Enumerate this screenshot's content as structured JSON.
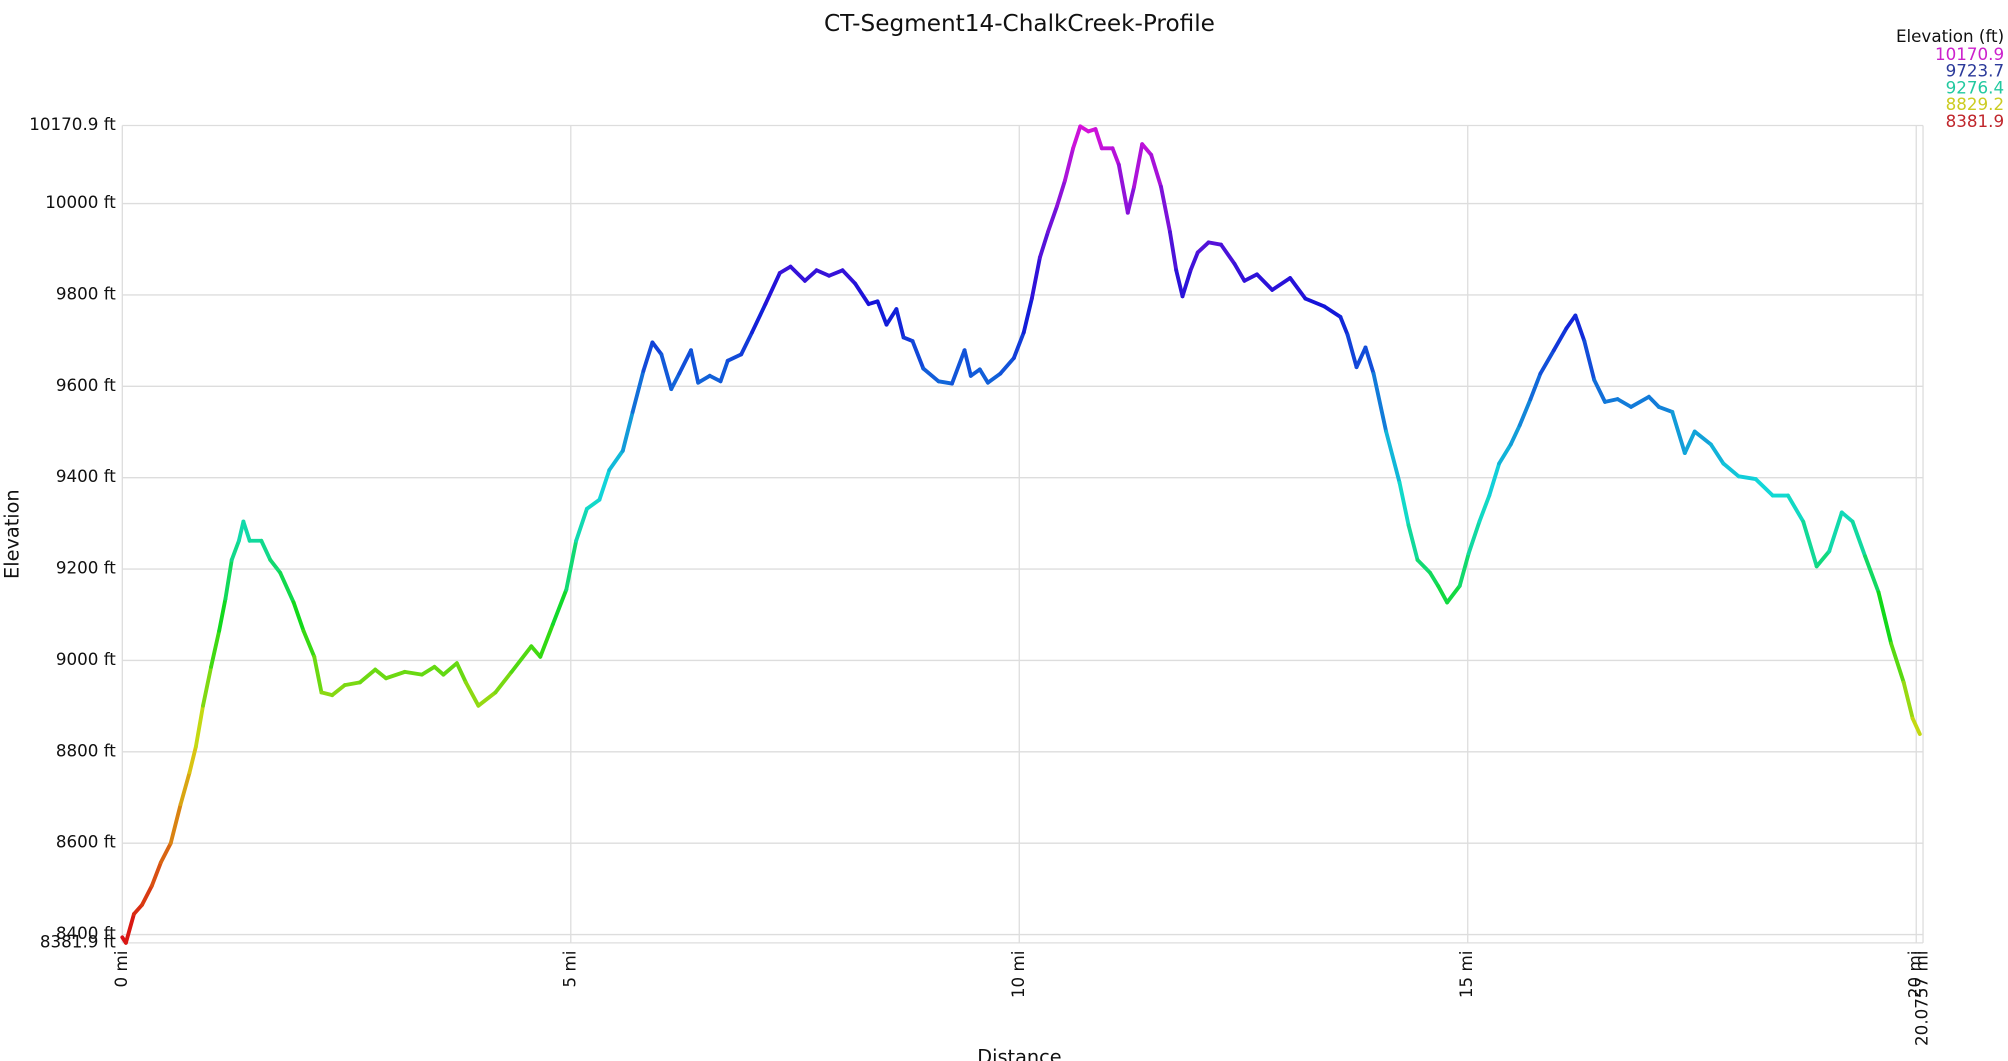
{
  "chart_data": {
    "type": "line",
    "title": "CT-Segment14-ChalkCreek-Profile",
    "x_label": "Distance",
    "y_label": "Elevation",
    "xlim": [
      0,
      20.0757
    ],
    "ylim": [
      8381.9,
      10170.9
    ],
    "xticks": [
      {
        "value": 0,
        "label": "0 mi"
      },
      {
        "value": 5,
        "label": "5 mi"
      },
      {
        "value": 10,
        "label": "10 mi"
      },
      {
        "value": 15,
        "label": "15 mi"
      },
      {
        "value": 20,
        "label": "20 mi"
      },
      {
        "value": 20.0757,
        "label": "20.0757 mi"
      }
    ],
    "yticks": [
      {
        "value": 8381.9,
        "label": "8381.9 ft"
      },
      {
        "value": 8400,
        "label": "8400 ft"
      },
      {
        "value": 8600,
        "label": "8600 ft"
      },
      {
        "value": 8800,
        "label": "8800 ft"
      },
      {
        "value": 9000,
        "label": "9000 ft"
      },
      {
        "value": 9200,
        "label": "9200 ft"
      },
      {
        "value": 9400,
        "label": "9400 ft"
      },
      {
        "value": 9600,
        "label": "9600 ft"
      },
      {
        "value": 9800,
        "label": "9800 ft"
      },
      {
        "value": 10000,
        "label": "10000 ft"
      },
      {
        "value": 10170.9,
        "label": "10170.9 ft"
      }
    ],
    "grid": true,
    "color_scale": {
      "title": "Elevation (ft)",
      "stops": [
        {
          "value": 10170.9,
          "color": "#cc22cc"
        },
        {
          "value": 9723.7,
          "color": "#2b3a9a"
        },
        {
          "value": 9276.4,
          "color": "#22c9a0"
        },
        {
          "value": 8829.2,
          "color": "#cccc22"
        },
        {
          "value": 8381.9,
          "color": "#c0262c"
        }
      ]
    },
    "x": [
      0,
      0.04,
      0.13,
      0.22,
      0.33,
      0.43,
      0.54,
      0.65,
      0.75,
      0.82,
      0.9,
      0.99,
      1.08,
      1.15,
      1.22,
      1.3,
      1.35,
      1.42,
      1.55,
      1.65,
      1.76,
      1.91,
      2.02,
      2.14,
      2.22,
      2.34,
      2.48,
      2.65,
      2.82,
      2.94,
      3.15,
      3.34,
      3.48,
      3.58,
      3.73,
      3.83,
      3.97,
      4.16,
      4.34,
      4.56,
      4.66,
      4.8,
      4.95,
      5.06,
      5.18,
      5.32,
      5.43,
      5.58,
      5.69,
      5.81,
      5.91,
      6.01,
      6.12,
      6.21,
      6.34,
      6.42,
      6.55,
      6.67,
      6.75,
      6.9,
      7.02,
      7.17,
      7.33,
      7.45,
      7.61,
      7.74,
      7.88,
      8.03,
      8.17,
      8.32,
      8.42,
      8.52,
      8.63,
      8.71,
      8.81,
      8.93,
      9.1,
      9.25,
      9.39,
      9.46,
      9.56,
      9.65,
      9.79,
      9.94,
      10.05,
      10.14,
      10.23,
      10.32,
      10.42,
      10.51,
      10.6,
      10.68,
      10.77,
      10.85,
      10.92,
      11.04,
      11.11,
      11.21,
      11.28,
      11.37,
      11.47,
      11.58,
      11.68,
      11.75,
      11.82,
      11.91,
      11.99,
      12.11,
      12.25,
      12.4,
      12.51,
      12.65,
      12.82,
      13.02,
      13.19,
      13.4,
      13.58,
      13.66,
      13.76,
      13.86,
      13.95,
      14.09,
      14.24,
      14.34,
      14.44,
      14.58,
      14.67,
      14.77,
      14.91,
      15.01,
      15.13,
      15.24,
      15.35,
      15.48,
      15.58,
      15.7,
      15.81,
      15.96,
      16.1,
      16.2,
      16.3,
      16.41,
      16.53,
      16.67,
      16.82,
      17.02,
      17.13,
      17.28,
      17.42,
      17.53,
      17.71,
      17.85,
      18.02,
      18.21,
      18.4,
      18.57,
      18.74,
      18.89,
      19.03,
      19.17,
      19.29,
      19.43,
      19.58,
      19.72,
      19.86,
      19.96,
      20.04
    ],
    "values": [
      8394,
      8382,
      8445,
      8465,
      8507,
      8558,
      8600,
      8685,
      8755,
      8811,
      8901,
      8986,
      9065,
      9135,
      9220,
      9262,
      9304,
      9262,
      9262,
      9220,
      9192,
      9127,
      9065,
      9008,
      8930,
      8924,
      8946,
      8952,
      8980,
      8961,
      8975,
      8969,
      8986,
      8969,
      8994,
      8952,
      8901,
      8930,
      8975,
      9031,
      9008,
      9079,
      9155,
      9262,
      9332,
      9352,
      9417,
      9459,
      9544,
      9634,
      9696,
      9670,
      9594,
      9628,
      9679,
      9608,
      9623,
      9611,
      9656,
      9670,
      9718,
      9780,
      9848,
      9862,
      9831,
      9854,
      9842,
      9854,
      9825,
      9780,
      9786,
      9735,
      9769,
      9707,
      9699,
      9639,
      9611,
      9606,
      9679,
      9623,
      9637,
      9608,
      9628,
      9662,
      9718,
      9792,
      9882,
      9938,
      9994,
      10051,
      10121,
      10169,
      10158,
      10163,
      10121,
      10121,
      10085,
      9980,
      10037,
      10130,
      10107,
      10037,
      9938,
      9854,
      9797,
      9854,
      9893,
      9915,
      9910,
      9868,
      9831,
      9845,
      9811,
      9837,
      9792,
      9775,
      9752,
      9713,
      9642,
      9685,
      9628,
      9501,
      9389,
      9296,
      9220,
      9192,
      9163,
      9127,
      9163,
      9234,
      9304,
      9361,
      9431,
      9473,
      9515,
      9572,
      9628,
      9679,
      9727,
      9755,
      9699,
      9614,
      9566,
      9572,
      9555,
      9577,
      9555,
      9544,
      9454,
      9501,
      9473,
      9431,
      9403,
      9397,
      9361,
      9361,
      9304,
      9206,
      9239,
      9324,
      9304,
      9228,
      9149,
      9037,
      8952,
      8873,
      8839
    ]
  }
}
